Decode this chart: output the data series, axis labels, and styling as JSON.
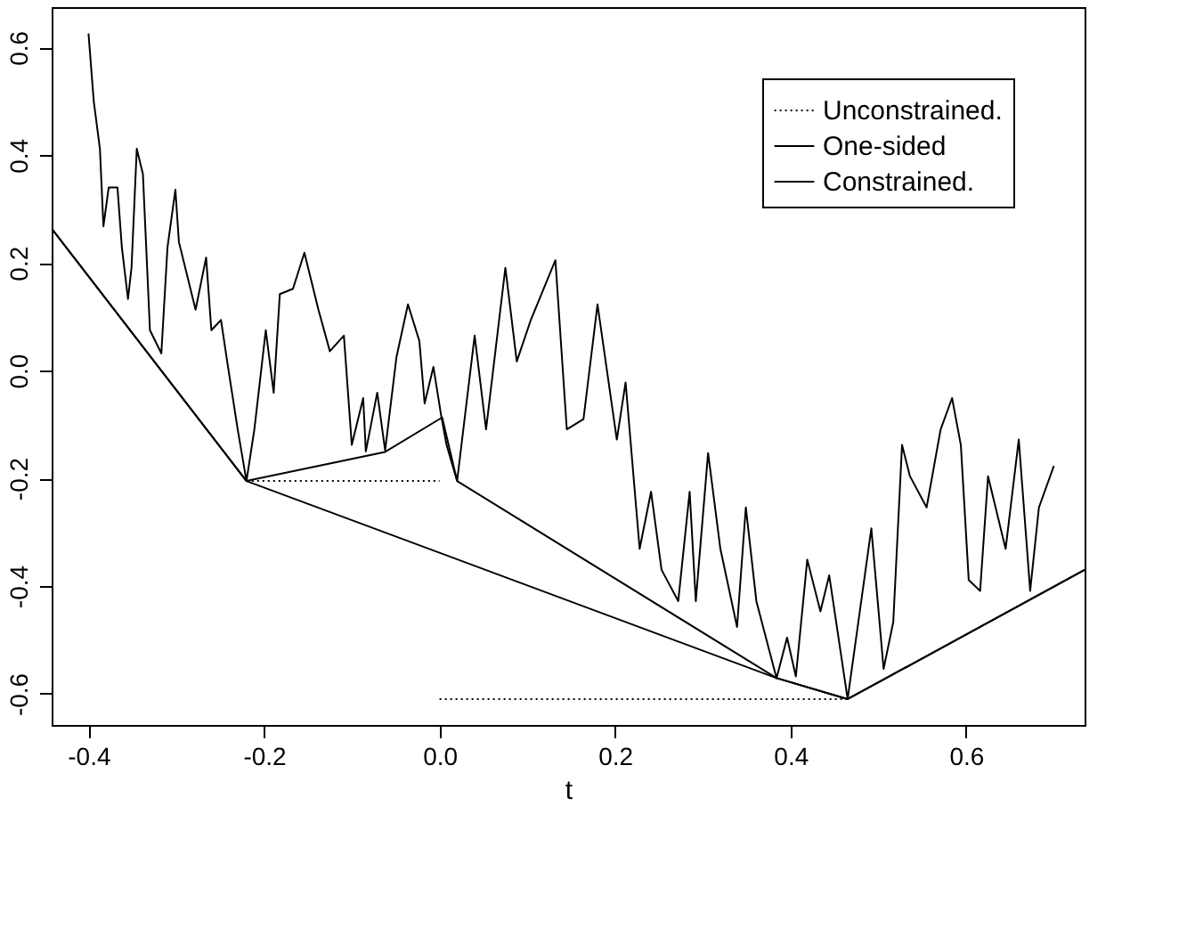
{
  "chart_data": {
    "type": "line",
    "xlabel": "t",
    "xlim": [
      -0.442,
      0.735
    ],
    "ylim": [
      -0.658,
      0.675
    ],
    "xticks": [
      {
        "value": -0.4,
        "label": "-0.4"
      },
      {
        "value": -0.2,
        "label": "-0.2"
      },
      {
        "value": 0,
        "label": "0.0"
      },
      {
        "value": 0.2,
        "label": "0.2"
      },
      {
        "value": 0.4,
        "label": "0.4"
      },
      {
        "value": 0.6,
        "label": "0.6"
      }
    ],
    "yticks": [
      {
        "value": -0.6,
        "label": "-0.6"
      },
      {
        "value": -0.4,
        "label": "-0.4"
      },
      {
        "value": -0.2,
        "label": "-0.2"
      },
      {
        "value": 0,
        "label": "0.0"
      },
      {
        "value": 0.2,
        "label": "0.2"
      },
      {
        "value": 0.4,
        "label": "0.4"
      },
      {
        "value": 0.6,
        "label": "0.6"
      }
    ],
    "grid": false,
    "legend": "top right",
    "marker": "none",
    "series": [
      {
        "color": "#000000",
        "line_style": "solid",
        "x": [
          -0.4,
          -0.394,
          -0.387,
          -0.383,
          -0.377,
          -0.367,
          -0.362,
          -0.355,
          -0.351,
          -0.345,
          -0.338,
          -0.33,
          -0.317,
          -0.31,
          -0.301,
          -0.297,
          -0.278,
          -0.266,
          -0.26,
          -0.249,
          -0.242,
          -0.23,
          -0.22,
          -0.211,
          -0.198,
          -0.189,
          -0.182,
          -0.167,
          -0.154,
          -0.138,
          -0.125,
          -0.109,
          -0.1,
          -0.087,
          -0.084,
          -0.071,
          -0.062,
          -0.049,
          -0.036,
          -0.023,
          -0.017,
          -0.007,
          0.002,
          0.008,
          0.02,
          0.04,
          0.053,
          0.075,
          0.088,
          0.104,
          0.132,
          0.145,
          0.164,
          0.18,
          0.202,
          0.212,
          0.228,
          0.241,
          0.253,
          0.272,
          0.285,
          0.292,
          0.306,
          0.32,
          0.339,
          0.349,
          0.361,
          0.384,
          0.396,
          0.406,
          0.419,
          0.434,
          0.444,
          0.465,
          0.492,
          0.506,
          0.517,
          0.527,
          0.536,
          0.555,
          0.571,
          0.584,
          0.594,
          0.603,
          0.616,
          0.625,
          0.645,
          0.66,
          0.673,
          0.683,
          0.7
        ],
        "values": [
          0.626,
          0.5,
          0.412,
          0.268,
          0.34,
          0.34,
          0.229,
          0.133,
          0.191,
          0.412,
          0.365,
          0.075,
          0.032,
          0.229,
          0.336,
          0.239,
          0.113,
          0.21,
          0.075,
          0.094,
          0.017,
          -0.109,
          -0.205,
          -0.109,
          0.075,
          -0.041,
          0.142,
          0.152,
          0.219,
          0.113,
          0.036,
          0.065,
          -0.138,
          -0.051,
          -0.15,
          -0.041,
          -0.148,
          0.026,
          0.123,
          0.055,
          -0.061,
          0.007,
          -0.085,
          -0.138,
          -0.205,
          0.065,
          -0.109,
          0.191,
          0.017,
          0.094,
          0.205,
          -0.109,
          -0.09,
          0.123,
          -0.128,
          -0.022,
          -0.331,
          -0.225,
          -0.37,
          -0.428,
          -0.225,
          -0.428,
          -0.153,
          -0.331,
          -0.476,
          -0.254,
          -0.428,
          -0.571,
          -0.496,
          -0.568,
          -0.351,
          -0.447,
          -0.38,
          -0.61,
          -0.293,
          -0.554,
          -0.467,
          -0.138,
          -0.196,
          -0.254,
          -0.109,
          -0.051,
          -0.138,
          -0.389,
          -0.409,
          -0.196,
          -0.331,
          -0.128,
          -0.409,
          -0.254,
          -0.177
        ]
      },
      {
        "name": "Unconstrained.",
        "color": "#000000",
        "line_style": "dotted",
        "x": [
          -0.22,
          0.0,
          null,
          0.0,
          0.465
        ],
        "values": [
          -0.205,
          -0.205,
          null,
          -0.61,
          -0.61
        ]
      },
      {
        "name": "One-sided",
        "color": "#000000",
        "line_style": "solid",
        "x": [
          -0.442,
          -0.22,
          -0.062,
          0.003,
          0.02,
          0.384,
          0.465,
          0.735
        ],
        "values": [
          0.264,
          -0.205,
          -0.151,
          -0.087,
          -0.205,
          -0.571,
          -0.61,
          -0.37
        ]
      },
      {
        "name": "Constrained.",
        "color": "#000000",
        "line_style": "solid",
        "x": [
          -0.442,
          -0.22,
          0.384,
          0.465,
          0.735
        ],
        "values": [
          0.264,
          -0.205,
          -0.571,
          -0.61,
          -0.37
        ]
      }
    ]
  }
}
